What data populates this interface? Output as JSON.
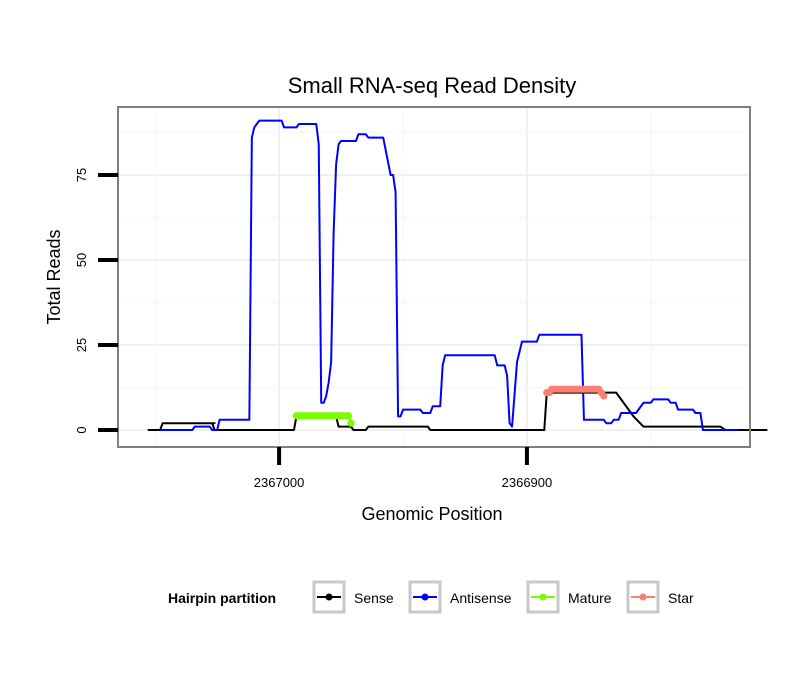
{
  "chart_data": {
    "type": "line",
    "title": "Small RNA-seq Read Density",
    "xlabel": "Genomic Position",
    "ylabel": "Total Reads",
    "x_reversed": true,
    "xlim": [
      2367065,
      2366810
    ],
    "ylim": [
      -5,
      95
    ],
    "x_ticks": [
      2367000,
      2366900
    ],
    "x_tick_labels": [
      "2367000",
      "2366900"
    ],
    "y_ticks": [
      0,
      25,
      50,
      75
    ],
    "y_tick_labels": [
      "0",
      "25",
      "50",
      "75"
    ],
    "grid": true,
    "legend": {
      "title": "Hairpin partition",
      "position": "bottom",
      "entries": [
        "Sense",
        "Antisense",
        "Mature",
        "Star"
      ]
    },
    "series": [
      {
        "name": "Sense",
        "color": "#000000",
        "marker": false,
        "points": [
          [
            2367053,
            0
          ],
          [
            2367048,
            0
          ],
          [
            2367047,
            2
          ],
          [
            2367026,
            2
          ],
          [
            2367035,
            2
          ],
          [
            2367027,
            2
          ],
          [
            2367026,
            0
          ],
          [
            2367003,
            0
          ],
          [
            2366994,
            0
          ],
          [
            2366993,
            4
          ],
          [
            2366977,
            4
          ],
          [
            2366976,
            1
          ],
          [
            2366971,
            1
          ],
          [
            2366970,
            0
          ],
          [
            2366965,
            0
          ],
          [
            2366964,
            1
          ],
          [
            2366940,
            1
          ],
          [
            2366939,
            0
          ],
          [
            2366893,
            0
          ],
          [
            2366892,
            11
          ],
          [
            2366864,
            11
          ],
          [
            2366857,
            4
          ],
          [
            2366853,
            1
          ],
          [
            2366822,
            1
          ],
          [
            2366820,
            0
          ],
          [
            2366803,
            0
          ]
        ]
      },
      {
        "name": "Antisense",
        "color": "#0000ff",
        "marker": false,
        "points": [
          [
            2367048,
            0
          ],
          [
            2367035,
            0
          ],
          [
            2367034,
            1
          ],
          [
            2367028,
            1
          ],
          [
            2367027,
            0
          ],
          [
            2367025,
            0
          ],
          [
            2367024,
            3
          ],
          [
            2367012,
            3
          ],
          [
            2367011,
            86
          ],
          [
            2367010,
            89
          ],
          [
            2367008,
            91
          ],
          [
            2366999,
            91
          ],
          [
            2366998,
            89
          ],
          [
            2366993,
            89
          ],
          [
            2366992,
            90
          ],
          [
            2366985,
            90
          ],
          [
            2366984,
            84
          ],
          [
            2366983,
            8
          ],
          [
            2366982,
            8
          ],
          [
            2366981,
            10
          ],
          [
            2366980,
            14
          ],
          [
            2366979,
            20
          ],
          [
            2366978,
            58
          ],
          [
            2366977,
            78
          ],
          [
            2366976,
            84
          ],
          [
            2366975,
            85
          ],
          [
            2366969,
            85
          ],
          [
            2366968,
            87
          ],
          [
            2366965,
            87
          ],
          [
            2366964,
            86
          ],
          [
            2366958,
            86
          ],
          [
            2366955,
            75
          ],
          [
            2366954,
            75
          ],
          [
            2366953,
            70
          ],
          [
            2366952,
            4
          ],
          [
            2366951,
            4
          ],
          [
            2366950,
            6
          ],
          [
            2366943,
            6
          ],
          [
            2366942,
            5
          ],
          [
            2366939,
            5
          ],
          [
            2366938,
            7
          ],
          [
            2366935,
            7
          ],
          [
            2366934,
            19
          ],
          [
            2366933,
            22
          ],
          [
            2366913,
            22
          ],
          [
            2366912,
            19
          ],
          [
            2366909,
            19
          ],
          [
            2366908,
            16
          ],
          [
            2366907,
            2
          ],
          [
            2366906,
            1
          ],
          [
            2366904,
            20
          ],
          [
            2366902,
            26
          ],
          [
            2366896,
            26
          ],
          [
            2366895,
            28
          ],
          [
            2366878,
            28
          ],
          [
            2366877,
            3
          ],
          [
            2366869,
            3
          ],
          [
            2366868,
            2
          ],
          [
            2366866,
            2
          ],
          [
            2366865,
            3
          ],
          [
            2366863,
            3
          ],
          [
            2366862,
            5
          ],
          [
            2366856,
            5
          ],
          [
            2366855,
            6
          ],
          [
            2366853,
            8
          ],
          [
            2366850,
            8
          ],
          [
            2366849,
            9
          ],
          [
            2366843,
            9
          ],
          [
            2366842,
            8
          ],
          [
            2366840,
            8
          ],
          [
            2366839,
            6
          ],
          [
            2366833,
            6
          ],
          [
            2366832,
            5
          ],
          [
            2366830,
            5
          ],
          [
            2366829,
            0
          ],
          [
            2366815,
            0
          ]
        ]
      },
      {
        "name": "Mature",
        "color": "#7cfc00",
        "marker": true,
        "points": [
          [
            2366993,
            4.2
          ],
          [
            2366992,
            4.2
          ],
          [
            2366991,
            4.2
          ],
          [
            2366990,
            4.2
          ],
          [
            2366989,
            4.2
          ],
          [
            2366988,
            4.2
          ],
          [
            2366987,
            4.2
          ],
          [
            2366986,
            4.2
          ],
          [
            2366985,
            4.2
          ],
          [
            2366984,
            4.2
          ],
          [
            2366983,
            4.2
          ],
          [
            2366982,
            4.2
          ],
          [
            2366981,
            4.2
          ],
          [
            2366980,
            4.2
          ],
          [
            2366979,
            4.2
          ],
          [
            2366978,
            4.2
          ],
          [
            2366977,
            4.2
          ],
          [
            2366976,
            4.2
          ],
          [
            2366975,
            4.2
          ],
          [
            2366974,
            4.2
          ],
          [
            2366973,
            4.2
          ],
          [
            2366972,
            4.2
          ],
          [
            2366971,
            2
          ]
        ]
      },
      {
        "name": "Star",
        "color": "#fa8072",
        "marker": true,
        "points": [
          [
            2366892,
            11
          ],
          [
            2366891,
            11
          ],
          [
            2366890,
            12
          ],
          [
            2366889,
            12
          ],
          [
            2366888,
            12
          ],
          [
            2366887,
            12
          ],
          [
            2366886,
            12
          ],
          [
            2366885,
            12
          ],
          [
            2366884,
            12
          ],
          [
            2366883,
            12
          ],
          [
            2366882,
            12
          ],
          [
            2366881,
            12
          ],
          [
            2366880,
            12
          ],
          [
            2366879,
            12
          ],
          [
            2366878,
            12
          ],
          [
            2366877,
            12
          ],
          [
            2366876,
            12
          ],
          [
            2366875,
            12
          ],
          [
            2366874,
            12
          ],
          [
            2366873,
            12
          ],
          [
            2366872,
            12
          ],
          [
            2366871,
            12
          ],
          [
            2366870,
            11
          ],
          [
            2366869,
            10
          ]
        ]
      }
    ]
  }
}
